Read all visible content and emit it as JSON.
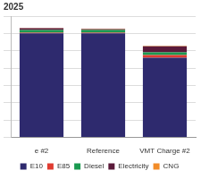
{
  "chart_data": {
    "type": "bar",
    "title": "2025",
    "categories": [
      "e #2",
      "Reference",
      "VMT Charge #2"
    ],
    "series": [
      {
        "name": "E10",
        "color": "#2e2a6e",
        "values": [
          6.0,
          6.0,
          4.6
        ]
      },
      {
        "name": "E85",
        "color": "#e03c31",
        "values": [
          0.05,
          0.05,
          0.15
        ]
      },
      {
        "name": "Diesel",
        "color": "#1a9a50",
        "values": [
          0.15,
          0.15,
          0.15
        ]
      },
      {
        "name": "Electricity",
        "color": "#5a1a3a",
        "values": [
          0.1,
          0.05,
          0.35
        ]
      },
      {
        "name": "CNG",
        "color": "#f28c28",
        "values": [
          0.02,
          0.02,
          0.03
        ]
      }
    ],
    "stacked": true,
    "grid": true,
    "legend": "bottom",
    "tick_labels": "x",
    "ylim": [
      0,
      7
    ],
    "yticks": [
      0,
      1,
      2,
      3,
      4,
      5,
      6,
      7
    ]
  }
}
